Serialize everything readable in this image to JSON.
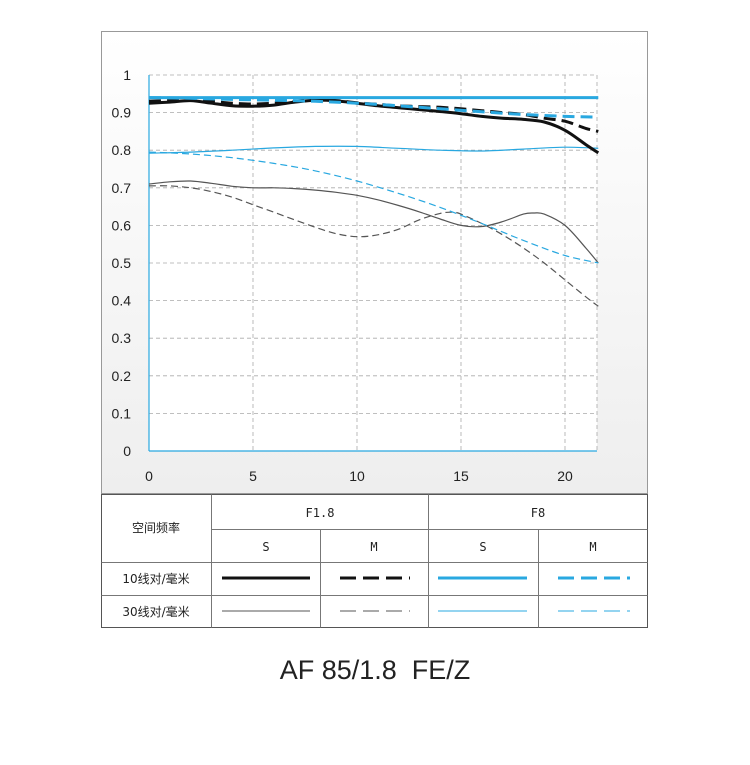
{
  "chart_data": {
    "type": "line",
    "xlabel": "",
    "ylabel": "",
    "xlim": [
      0,
      21.6
    ],
    "ylim": [
      0,
      1
    ],
    "x_ticks": [
      "0",
      "5",
      "10",
      "15",
      "20"
    ],
    "y_ticks": [
      "0",
      "0.1",
      "0.2",
      "0.3",
      "0.4",
      "0.5",
      "0.6",
      "0.7",
      "0.8",
      "0.9",
      "1"
    ],
    "grid": true,
    "series": [
      {
        "label": "F1.8 S 10线对/毫米",
        "color": "#111111",
        "dash": "solid",
        "weight": "thick",
        "x": [
          0,
          1,
          2,
          3,
          4,
          5,
          6,
          7,
          8,
          9,
          10,
          11,
          12,
          13,
          14,
          15,
          16,
          17,
          18,
          19,
          20,
          21,
          21.6
        ],
        "y": [
          0.925,
          0.928,
          0.932,
          0.925,
          0.918,
          0.917,
          0.92,
          0.928,
          0.933,
          0.931,
          0.925,
          0.918,
          0.913,
          0.908,
          0.903,
          0.897,
          0.89,
          0.885,
          0.882,
          0.875,
          0.853,
          0.815,
          0.793
        ]
      },
      {
        "label": "F1.8 M 10线对/毫米",
        "color": "#111111",
        "dash": "dash",
        "weight": "thick",
        "x": [
          0,
          1,
          2,
          3,
          4,
          5,
          6,
          7,
          8,
          9,
          10,
          11,
          12,
          13,
          14,
          15,
          16,
          17,
          18,
          19,
          20,
          21,
          21.6
        ],
        "y": [
          0.93,
          0.932,
          0.933,
          0.93,
          0.925,
          0.923,
          0.925,
          0.93,
          0.935,
          0.932,
          0.926,
          0.922,
          0.918,
          0.916,
          0.914,
          0.91,
          0.905,
          0.9,
          0.895,
          0.885,
          0.877,
          0.858,
          0.85
        ]
      },
      {
        "label": "F8 S 10线对/毫米",
        "color": "#29a8e0",
        "dash": "solid",
        "weight": "thick",
        "x": [
          0,
          5,
          10,
          15,
          20,
          21.6
        ],
        "y": [
          0.94,
          0.94,
          0.94,
          0.94,
          0.94,
          0.94
        ]
      },
      {
        "label": "F8 M 10线对/毫米",
        "color": "#29a8e0",
        "dash": "dash",
        "weight": "thick",
        "x": [
          0,
          2,
          4,
          6,
          8,
          10,
          12,
          14,
          16,
          18,
          20,
          21.6
        ],
        "y": [
          0.94,
          0.938,
          0.935,
          0.933,
          0.93,
          0.925,
          0.918,
          0.91,
          0.902,
          0.895,
          0.89,
          0.888
        ]
      },
      {
        "label": "F1.8 S 30线对/毫米",
        "color": "#555555",
        "dash": "solid",
        "weight": "thin",
        "x": [
          0,
          1,
          2,
          3,
          4,
          5,
          6,
          7,
          8,
          9,
          10,
          11,
          12,
          13,
          14,
          15,
          16,
          17,
          18,
          18.5,
          19,
          20,
          21,
          21.6
        ],
        "y": [
          0.71,
          0.716,
          0.718,
          0.712,
          0.704,
          0.7,
          0.7,
          0.698,
          0.694,
          0.688,
          0.68,
          0.668,
          0.653,
          0.636,
          0.617,
          0.6,
          0.597,
          0.61,
          0.63,
          0.633,
          0.63,
          0.6,
          0.54,
          0.5
        ]
      },
      {
        "label": "F1.8 M 30线对/毫米",
        "color": "#555555",
        "dash": "dash",
        "weight": "thin",
        "x": [
          0,
          1,
          2,
          3,
          4,
          5,
          6,
          7,
          8,
          9,
          10,
          11,
          12,
          13,
          14,
          14.6,
          15,
          16,
          17,
          18,
          19,
          20,
          21,
          21.6
        ],
        "y": [
          0.705,
          0.705,
          0.7,
          0.69,
          0.675,
          0.655,
          0.635,
          0.615,
          0.595,
          0.578,
          0.57,
          0.575,
          0.59,
          0.615,
          0.632,
          0.635,
          0.63,
          0.605,
          0.575,
          0.54,
          0.5,
          0.455,
          0.41,
          0.385
        ]
      },
      {
        "label": "F8 S 30线对/毫米",
        "color": "#29a8e0",
        "dash": "solid",
        "weight": "thin",
        "x": [
          0,
          2,
          4,
          6,
          8,
          10,
          12,
          14,
          16,
          18,
          20,
          21.6
        ],
        "y": [
          0.792,
          0.795,
          0.8,
          0.806,
          0.81,
          0.81,
          0.805,
          0.8,
          0.798,
          0.803,
          0.808,
          0.805
        ]
      },
      {
        "label": "F8 M 30线对/毫米",
        "color": "#29a8e0",
        "dash": "dash",
        "weight": "thin",
        "x": [
          0,
          2,
          4,
          6,
          8,
          10,
          12,
          14,
          16,
          18,
          20,
          21.6
        ],
        "y": [
          0.795,
          0.79,
          0.78,
          0.765,
          0.745,
          0.718,
          0.685,
          0.648,
          0.605,
          0.56,
          0.52,
          0.5
        ]
      }
    ]
  },
  "legend_table": {
    "header_label": "空间频率",
    "apertures": [
      "F1.8",
      "F8"
    ],
    "types": [
      "S",
      "M",
      "S",
      "M"
    ],
    "rows": [
      "10线对/毫米",
      "30线对/毫米"
    ]
  },
  "colors": {
    "blue": "#29a8e0",
    "dark": "#111111",
    "gray": "#555555"
  },
  "caption": "AF 85/1.8  FE/Z"
}
